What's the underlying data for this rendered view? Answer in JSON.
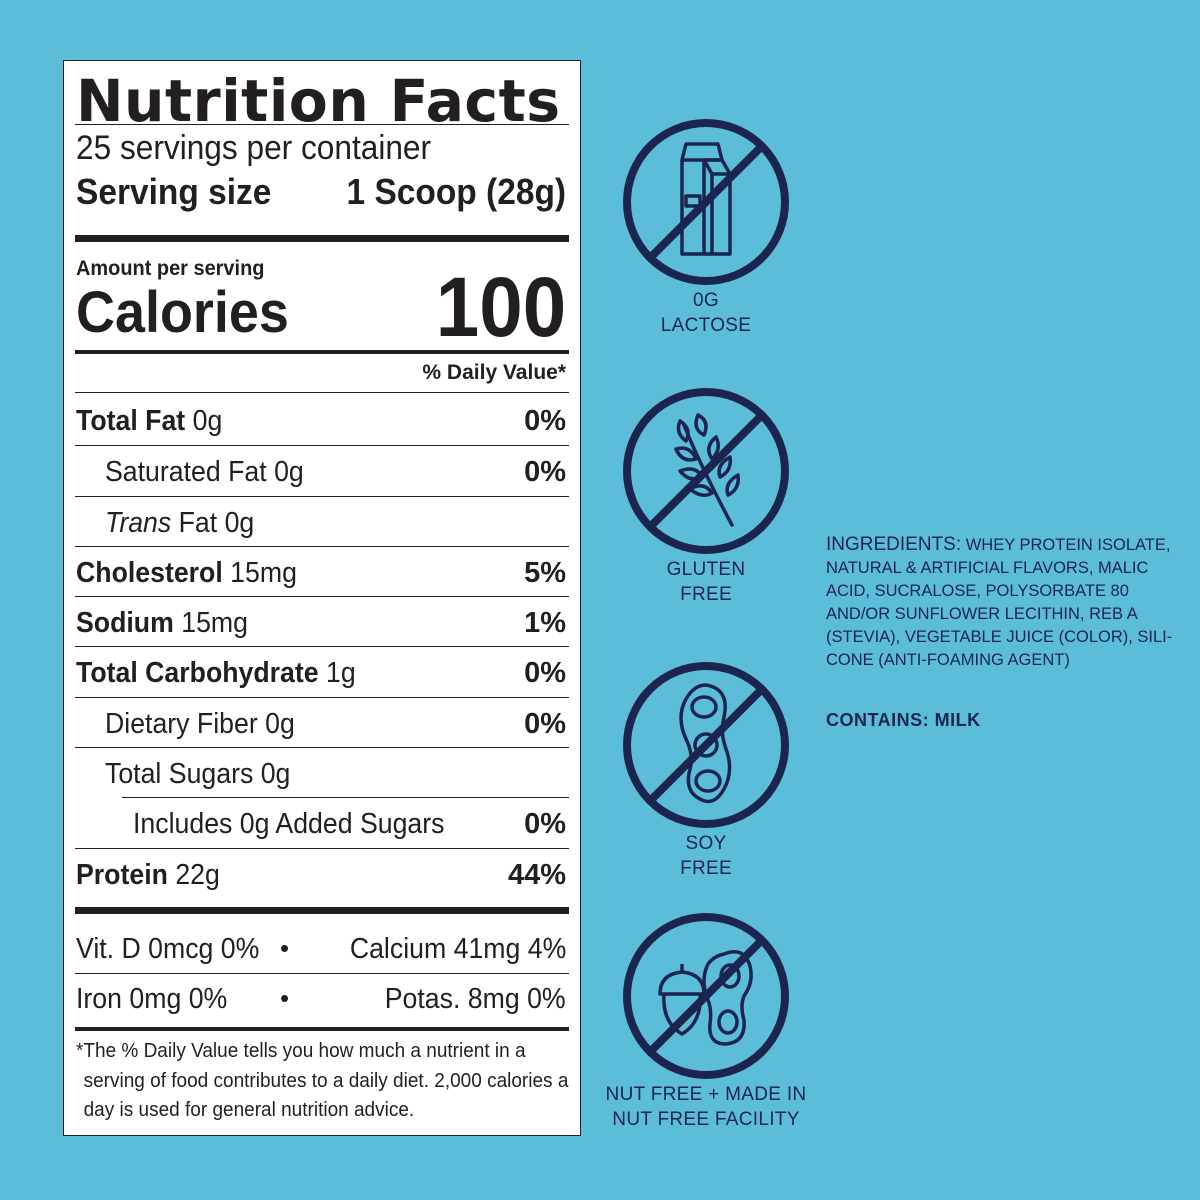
{
  "colors": {
    "background": "#5bbdd8",
    "icon_navy": "#1b2550",
    "label_text": "#231f20"
  },
  "label": {
    "title": "Nutrition Facts",
    "servings_per_container": "25 servings per container",
    "serving_size_label": "Serving size",
    "serving_size_value": "1 Scoop (28g)",
    "amount_per_serving": "Amount per serving",
    "calories_label": "Calories",
    "calories_value": "100",
    "daily_value_header": "% Daily Value*",
    "rows": [
      {
        "bold_name": "Total Fat",
        "amount": " 0g",
        "dv": "0%"
      },
      {
        "name": "Saturated Fat 0g",
        "dv": "0%"
      },
      {
        "italic_part": "Trans",
        "name": " Fat 0g",
        "dv": ""
      },
      {
        "bold_name": "Cholesterol",
        "amount": " 15mg",
        "dv": "5%"
      },
      {
        "bold_name": "Sodium",
        "amount": " 15mg",
        "dv": "1%"
      },
      {
        "bold_name": "Total Carbohydrate",
        "amount": " 1g",
        "dv": "0%"
      },
      {
        "name": "Dietary Fiber 0g",
        "dv": "0%"
      },
      {
        "name": "Total Sugars 0g",
        "dv": ""
      },
      {
        "name": "Includes 0g Added Sugars",
        "dv": "0%"
      },
      {
        "bold_name": "Protein",
        "amount": " 22g",
        "dv": "44%"
      }
    ],
    "vitamins": [
      {
        "left": "Vit. D 0mcg 0%",
        "right": "Calcium 41mg 4%"
      },
      {
        "left": "Iron 0mg 0%",
        "right": "Potas. 8mg 0%"
      }
    ],
    "bullet": "•",
    "footnote_lines": [
      "*The % Daily Value tells you how much a nutrient in a",
      "serving of food contributes to a daily diet. 2,000 calories a",
      "day is used for general nutrition advice."
    ]
  },
  "badges": [
    {
      "icon": "milk-carton-icon",
      "caption_lines": [
        "0G",
        "LACTOSE"
      ]
    },
    {
      "icon": "wheat-icon",
      "caption_lines": [
        "GLUTEN",
        "FREE"
      ]
    },
    {
      "icon": "soybean-icon",
      "caption_lines": [
        "SOY",
        "FREE"
      ]
    },
    {
      "icon": "acorn-peanut-icon",
      "caption_lines": [
        "NUT FREE + MADE IN",
        "NUT FREE FACILITY"
      ]
    }
  ],
  "ingredients": {
    "heading": "INGREDIENTS:",
    "text_lines": [
      "WHEY PROTEIN ISOLATE,",
      "NATURAL & ARTIFICIAL FLAVORS, MALIC",
      "ACID, SUCRALOSE, POLYSORBATE 80",
      "AND/OR SUNFLOWER LECITHIN, REB A",
      "(STEVIA), VEGETABLE JUICE (COLOR), SILI-",
      "CONE (ANTI-FOAMING AGENT)"
    ],
    "contains": "CONTAINS: MILK"
  }
}
